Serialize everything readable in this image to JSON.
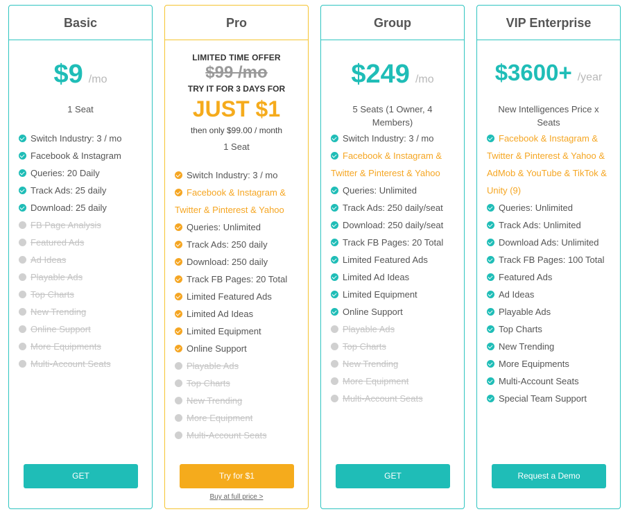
{
  "plans": [
    {
      "name": "Basic",
      "price": "$9",
      "period": "/mo",
      "seats": "1 Seat",
      "button": "GET",
      "features": [
        {
          "text": "Switch Industry: 3 / mo",
          "state": "on"
        },
        {
          "text": "Facebook & Instagram",
          "state": "on"
        },
        {
          "text": "Queries: 20 Daily",
          "state": "on"
        },
        {
          "text": "Track Ads: 25 daily",
          "state": "on"
        },
        {
          "text": "Download: 25 daily",
          "state": "on"
        },
        {
          "text": "FB Page Analysis",
          "state": "off"
        },
        {
          "text": "Featured Ads",
          "state": "off"
        },
        {
          "text": "Ad Ideas",
          "state": "off"
        },
        {
          "text": "Playable Ads",
          "state": "off"
        },
        {
          "text": "Top Charts",
          "state": "off"
        },
        {
          "text": "New Trending",
          "state": "off"
        },
        {
          "text": "Online Support",
          "state": "off"
        },
        {
          "text": "More Equipments",
          "state": "off"
        },
        {
          "text": "Multi-Account Seats",
          "state": "off"
        }
      ]
    },
    {
      "name": "Pro",
      "offer_label": "LIMITED TIME OFFER",
      "old_price": "$99 /mo",
      "try_text": "TRY IT FOR 3 DAYS FOR",
      "deal": "JUST $1",
      "then_text": "then only $99.00 / month",
      "seats": "1 Seat",
      "button": "Try for $1",
      "sublink": "Buy at full price >",
      "features": [
        {
          "text": "Switch Industry: 3 / mo",
          "state": "on"
        },
        {
          "text": "Facebook & Instagram & Twitter & Pinterest & Yahoo",
          "state": "hl"
        },
        {
          "text": "Queries: Unlimited",
          "state": "on"
        },
        {
          "text": "Track Ads: 250 daily",
          "state": "on"
        },
        {
          "text": "Download: 250 daily",
          "state": "on"
        },
        {
          "text": "Track FB Pages: 20 Total",
          "state": "on"
        },
        {
          "text": "Limited Featured Ads",
          "state": "on"
        },
        {
          "text": "Limited Ad Ideas",
          "state": "on"
        },
        {
          "text": "Limited Equipment",
          "state": "on"
        },
        {
          "text": "Online Support",
          "state": "on"
        },
        {
          "text": "Playable Ads",
          "state": "off"
        },
        {
          "text": "Top Charts",
          "state": "off"
        },
        {
          "text": "New Trending",
          "state": "off"
        },
        {
          "text": "More Equipment",
          "state": "off"
        },
        {
          "text": "Multi-Account Seats",
          "state": "off"
        }
      ]
    },
    {
      "name": "Group",
      "price": "$249",
      "period": "/mo",
      "seats": "5 Seats (1 Owner, 4 Members)",
      "button": "GET",
      "features": [
        {
          "text": "Switch Industry: 3 / mo",
          "state": "on"
        },
        {
          "text": "Facebook & Instagram & Twitter & Pinterest & Yahoo",
          "state": "hl"
        },
        {
          "text": "Queries: Unlimited",
          "state": "on"
        },
        {
          "text": "Track Ads: 250 daily/seat",
          "state": "on"
        },
        {
          "text": "Download: 250 daily/seat",
          "state": "on"
        },
        {
          "text": "Track FB Pages: 20 Total",
          "state": "on"
        },
        {
          "text": "Limited Featured Ads",
          "state": "on"
        },
        {
          "text": "Limited Ad Ideas",
          "state": "on"
        },
        {
          "text": "Limited Equipment",
          "state": "on"
        },
        {
          "text": "Online Support",
          "state": "on"
        },
        {
          "text": "Playable Ads",
          "state": "off"
        },
        {
          "text": "Top Charts",
          "state": "off"
        },
        {
          "text": "New Trending",
          "state": "off"
        },
        {
          "text": "More Equipment",
          "state": "off"
        },
        {
          "text": "Multi-Account Seats",
          "state": "off"
        }
      ]
    },
    {
      "name": "VIP Enterprise",
      "price": "$3600+",
      "period": "/year",
      "seats": "New Intelligences Price x Seats",
      "button": "Request a Demo",
      "features": [
        {
          "text": "Facebook & Instagram & Twitter & Pinterest & Yahoo & AdMob & YouTube & TikTok & Unity  (9)",
          "state": "hl"
        },
        {
          "text": "Queries: Unlimited",
          "state": "on"
        },
        {
          "text": "Track Ads: Unlimited",
          "state": "on"
        },
        {
          "text": "Download Ads: Unlimited",
          "state": "on"
        },
        {
          "text": "Track FB Pages: 100 Total",
          "state": "on"
        },
        {
          "text": "Featured Ads",
          "state": "on"
        },
        {
          "text": "Ad Ideas",
          "state": "on"
        },
        {
          "text": "Playable Ads",
          "state": "on"
        },
        {
          "text": "Top Charts",
          "state": "on"
        },
        {
          "text": "New Trending",
          "state": "on"
        },
        {
          "text": "More Equipments",
          "state": "on"
        },
        {
          "text": "Multi-Account Seats",
          "state": "on"
        },
        {
          "text": "Special Team Support",
          "state": "on"
        }
      ]
    }
  ],
  "colors": {
    "teal": "#1fbdb7",
    "orange": "#f5a623",
    "disabled": "#c4c4c4",
    "pro_border": "#f5c430"
  },
  "icons": {
    "included": "check-circle-icon",
    "excluded": "grey-dot-icon"
  }
}
